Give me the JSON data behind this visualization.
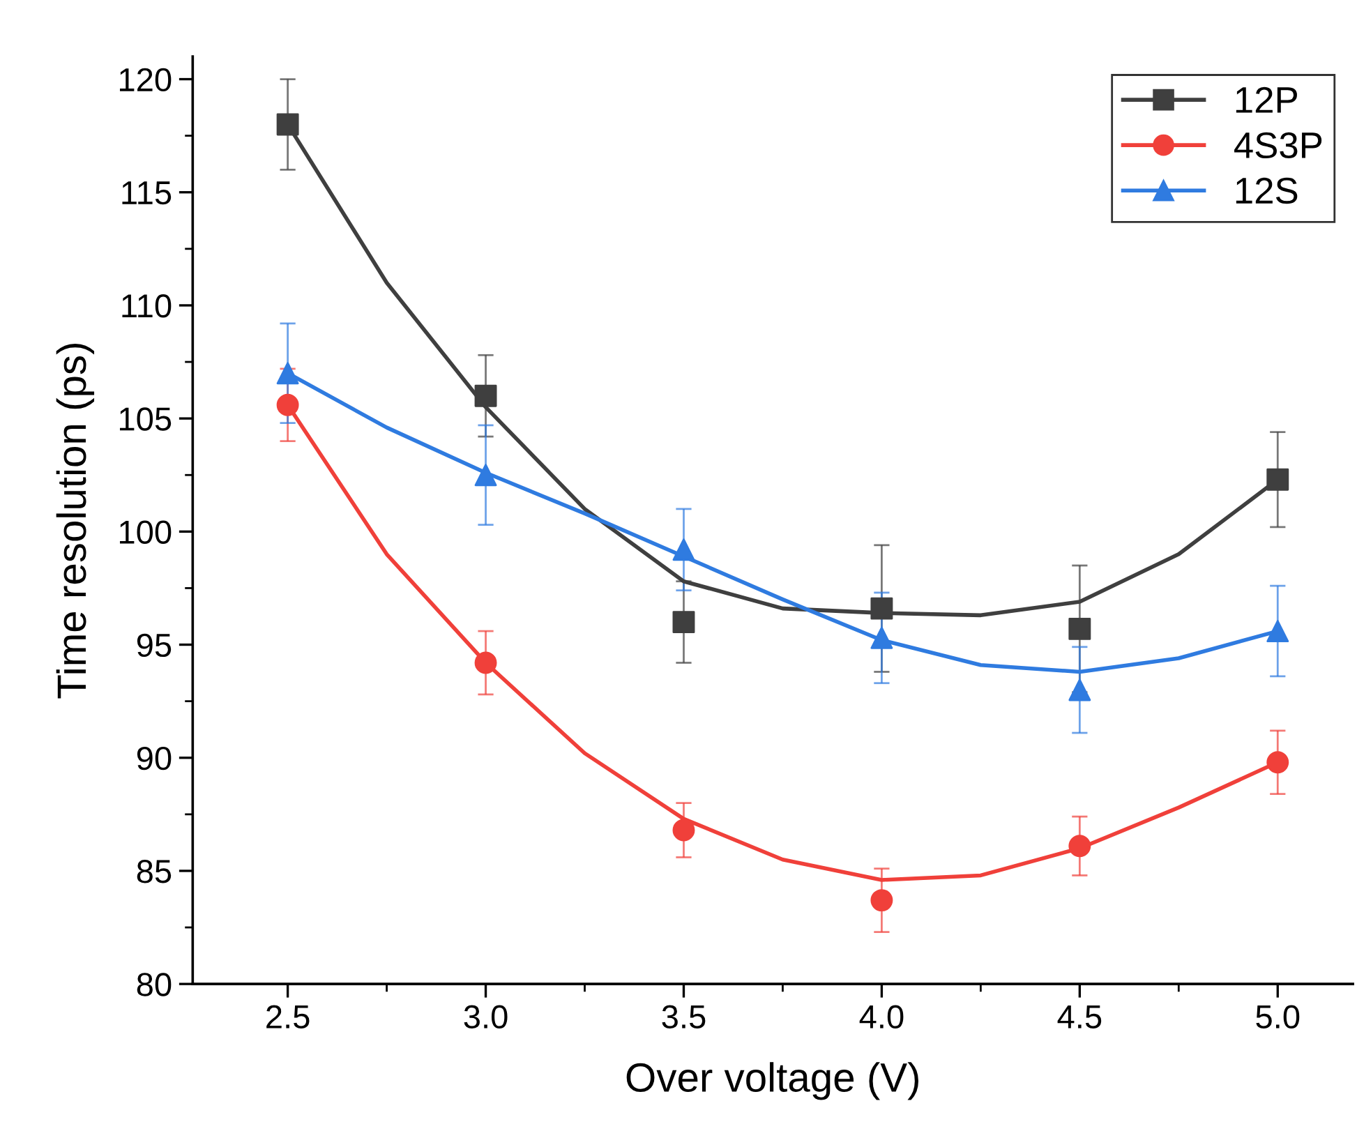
{
  "chart_data": {
    "type": "scatter",
    "xlabel": "Over voltage (V)",
    "ylabel": "Time resolution (ps)",
    "xlim": [
      2.26,
      5.19
    ],
    "ylim": [
      80,
      121
    ],
    "xticks": [
      {
        "value": 2.5,
        "label": "2.5"
      },
      {
        "value": 3.0,
        "label": "3.0"
      },
      {
        "value": 3.5,
        "label": "3.5"
      },
      {
        "value": 4.0,
        "label": "4.0"
      },
      {
        "value": 4.5,
        "label": "4.5"
      },
      {
        "value": 5.0,
        "label": "5.0"
      }
    ],
    "yticks": [
      80,
      85,
      90,
      95,
      100,
      105,
      110,
      115,
      120
    ],
    "legend": "top right",
    "grid": false,
    "x": [
      2.5,
      3.0,
      3.5,
      4.0,
      4.5,
      5.0
    ],
    "series": [
      {
        "name": "12P",
        "color": "#3f3f3f",
        "marker": "square",
        "values": [
          118,
          106,
          96,
          96.6,
          95.7,
          102.3
        ],
        "errors": [
          2,
          1.8,
          1.8,
          2.8,
          2.8,
          2.1
        ]
      },
      {
        "name": "4S3P",
        "color": "#f0403a",
        "marker": "circle",
        "values": [
          105.6,
          94.2,
          86.8,
          83.7,
          86.1,
          89.8
        ],
        "errors": [
          1.6,
          1.4,
          1.2,
          1.4,
          1.3,
          1.4
        ]
      },
      {
        "name": "12S",
        "color": "#2f7be0",
        "marker": "triangle",
        "values": [
          107,
          102.5,
          99.2,
          95.3,
          93.0,
          95.6
        ],
        "errors": [
          2.2,
          2.2,
          1.8,
          2,
          1.9,
          2
        ]
      },
      {
        "type": "line",
        "color": "#3f3f3f",
        "x": [
          2.5,
          2.75,
          3.0,
          3.25,
          3.5,
          3.75,
          4.0,
          4.25,
          4.5,
          4.75,
          5.0
        ],
        "values": [
          118,
          111,
          105.5,
          101,
          97.8,
          96.6,
          96.4,
          96.3,
          96.9,
          99,
          102.3
        ]
      },
      {
        "type": "line",
        "color": "#f0403a",
        "x": [
          2.5,
          2.75,
          3.0,
          3.25,
          3.5,
          3.75,
          4.0,
          4.25,
          4.5,
          4.75,
          5.0
        ],
        "values": [
          105.6,
          99,
          94.2,
          90.2,
          87.3,
          85.5,
          84.6,
          84.8,
          86.0,
          87.8,
          89.8
        ]
      },
      {
        "type": "line",
        "color": "#2f7be0",
        "x": [
          2.5,
          2.75,
          3.0,
          3.25,
          3.5,
          3.75,
          4.0,
          4.25,
          4.5,
          4.75,
          5.0
        ],
        "values": [
          107,
          104.6,
          102.6,
          100.8,
          98.9,
          97,
          95.2,
          94.1,
          93.8,
          94.4,
          95.6
        ]
      }
    ]
  }
}
